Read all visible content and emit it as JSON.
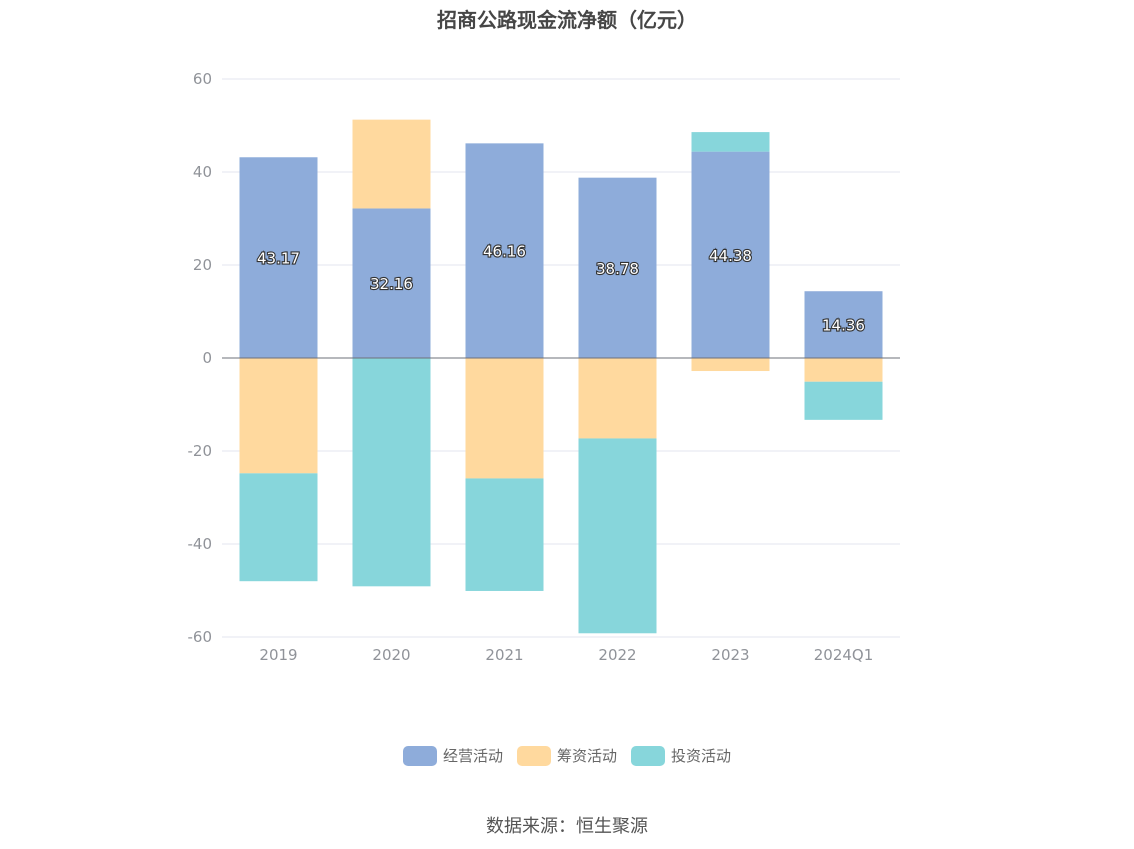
{
  "title": "招商公路现金流净额（亿元）",
  "source": "数据来源：恒生聚源",
  "colors": {
    "operating": "#8eacda",
    "financing": "#ffd99e",
    "investing": "#87d6db",
    "grid": "#e3e6ef",
    "zero_line": "#6e7079"
  },
  "chart_data": {
    "type": "bar",
    "stacked": true,
    "categories": [
      "2019",
      "2020",
      "2021",
      "2022",
      "2023",
      "2024Q1"
    ],
    "series": [
      {
        "name": "经营活动",
        "values": [
          43.17,
          32.16,
          46.16,
          38.78,
          44.38,
          14.36
        ],
        "labels": [
          "43.17",
          "32.16",
          "46.16",
          "38.78",
          "44.38",
          "14.36"
        ]
      },
      {
        "name": "筹资活动",
        "values": [
          -24.8,
          19.1,
          -25.9,
          -17.3,
          -2.8,
          -5.1
        ]
      },
      {
        "name": "投资活动",
        "values": [
          -23.2,
          -49.1,
          -24.2,
          -41.9,
          4.2,
          -8.2
        ]
      }
    ],
    "ylim": [
      -60,
      60
    ],
    "yticks": [
      60,
      40,
      20,
      0,
      -20,
      -40,
      -60
    ],
    "grid": true,
    "legend_position": "bottom"
  }
}
